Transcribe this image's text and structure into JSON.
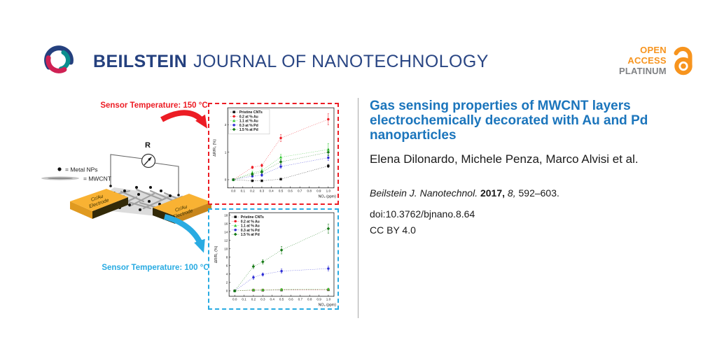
{
  "header": {
    "brand_bold": "BEILSTEIN",
    "brand_rest": "JOURNAL OF NANOTECHNOLOGY",
    "brand_color": "#24407e",
    "open_access": {
      "line1": "OPEN",
      "line2": "ACCESS",
      "line3": "PLATINUM",
      "orange": "#F7941E",
      "gray": "#808285"
    }
  },
  "article": {
    "title": "Gas sensing properties of MWCNT layers electrochemically decorated with Au and Pd nanoparticles",
    "authors": "Elena Dilonardo, Michele Penza, Marco Alvisi et al.",
    "citation": {
      "journal": "Beilstein J. Nanotechnol.",
      "year": "2017,",
      "volume": "8,",
      "pages": "592–603."
    },
    "doi": "doi:10.3762/bjnano.8.64",
    "license": "CC BY 4.0",
    "title_color": "#1B75BC"
  },
  "figure": {
    "label_150": "Sensor Temperature: 150 °C",
    "label_100": "Sensor Temperature: 100 °C",
    "resistor_label": "R",
    "legend_metal": "= Metal NPs",
    "legend_mwcnt": "= MWCNT",
    "electrode_line1": "Cr/Au",
    "electrode_line2": "Electrode",
    "colors": {
      "hot": "#EC1C24",
      "cold": "#29ABE2",
      "electrode_gold": "#F9B233"
    }
  },
  "chart_data": [
    {
      "id": "chart-150c",
      "type": "scatter",
      "title": "",
      "xlabel": "NO₂ (ppm)",
      "ylabel": "ΔR/R₀ (%)",
      "x": [
        0.0,
        0.2,
        0.3,
        0.5,
        1.0
      ],
      "xlim": [
        -0.06,
        1.06
      ],
      "ylim": [
        -0.3,
        2.62
      ],
      "xticks": [
        0.0,
        0.1,
        0.2,
        0.3,
        0.4,
        0.5,
        0.6,
        0.7,
        0.8,
        0.9,
        1.0
      ],
      "yticks": [
        0,
        1,
        2
      ],
      "grid": false,
      "legend_position": "upper-left",
      "legend_box": true,
      "line_style": "dotted",
      "series": [
        {
          "name": "Pristine CNTs",
          "color": "#111111",
          "marker": "square",
          "values": [
            0,
            -0.04,
            -0.04,
            0.02,
            0.5
          ],
          "errors": [
            0.02,
            0.03,
            0.03,
            0.03,
            0.06
          ]
        },
        {
          "name": "0.2 at % Au",
          "color": "#ed1c24",
          "marker": "circle",
          "values": [
            0,
            0.45,
            0.52,
            1.52,
            2.2
          ],
          "errors": [
            0.02,
            0.05,
            0.06,
            0.13,
            0.2
          ]
        },
        {
          "name": "1.1 at % Au",
          "color": "#2ec72e",
          "marker": "triangle",
          "values": [
            0,
            0.25,
            0.33,
            0.82,
            1.1
          ],
          "errors": [
            0.02,
            0.06,
            0.07,
            0.1,
            0.22
          ]
        },
        {
          "name": "0.3 at % Pd",
          "color": "#2b2bd5",
          "marker": "circle",
          "values": [
            0,
            0.13,
            0.17,
            0.48,
            0.8
          ],
          "errors": [
            0.02,
            0.04,
            0.05,
            0.07,
            0.1
          ]
        },
        {
          "name": "1.5 % at Pd",
          "color": "#157a15",
          "marker": "diamond",
          "values": [
            0,
            0.2,
            0.28,
            0.65,
            1.0
          ],
          "errors": [
            0.02,
            0.05,
            0.05,
            0.08,
            0.12
          ]
        }
      ]
    },
    {
      "id": "chart-100c",
      "type": "scatter",
      "title": "",
      "xlabel": "NO₂ (ppm)",
      "ylabel": "ΔR/R₀ (%)",
      "x": [
        0.0,
        0.2,
        0.3,
        0.5,
        1.0
      ],
      "xlim": [
        -0.06,
        1.06
      ],
      "ylim": [
        -1.3,
        18.6
      ],
      "xticks": [
        0.0,
        0.1,
        0.2,
        0.3,
        0.4,
        0.5,
        0.6,
        0.7,
        0.8,
        0.9,
        1.0
      ],
      "yticks": [
        0,
        2,
        4,
        6,
        8,
        10,
        12,
        14,
        16,
        18
      ],
      "grid": false,
      "legend_position": "upper-left",
      "legend_box": false,
      "line_style": "dotted",
      "series": [
        {
          "name": "Pristine CNTs",
          "color": "#111111",
          "marker": "square",
          "values": [
            0,
            0.15,
            0.15,
            0.2,
            0.25
          ],
          "errors": [
            0.08,
            0.1,
            0.1,
            0.12,
            0.12
          ]
        },
        {
          "name": "0.2 at % Au",
          "color": "#ed1c24",
          "marker": "circle",
          "values": [
            0,
            0.2,
            0.2,
            0.3,
            0.3
          ],
          "errors": [
            0.08,
            0.1,
            0.1,
            0.12,
            0.12
          ]
        },
        {
          "name": "1.1 at % Au",
          "color": "#2ec72e",
          "marker": "triangle",
          "values": [
            0,
            0.25,
            0.25,
            0.35,
            0.4
          ],
          "errors": [
            0.08,
            0.15,
            0.15,
            0.2,
            0.25
          ]
        },
        {
          "name": "0.3 at % Pd",
          "color": "#2b2bd5",
          "marker": "circle",
          "values": [
            0,
            3.2,
            3.9,
            4.7,
            5.3
          ],
          "errors": [
            0.15,
            0.45,
            0.4,
            0.5,
            0.55
          ]
        },
        {
          "name": "1.5 % at Pd",
          "color": "#157a15",
          "marker": "diamond",
          "values": [
            0,
            5.8,
            6.9,
            9.7,
            14.8
          ],
          "errors": [
            0.2,
            0.5,
            0.55,
            0.9,
            1.1
          ]
        }
      ]
    }
  ]
}
